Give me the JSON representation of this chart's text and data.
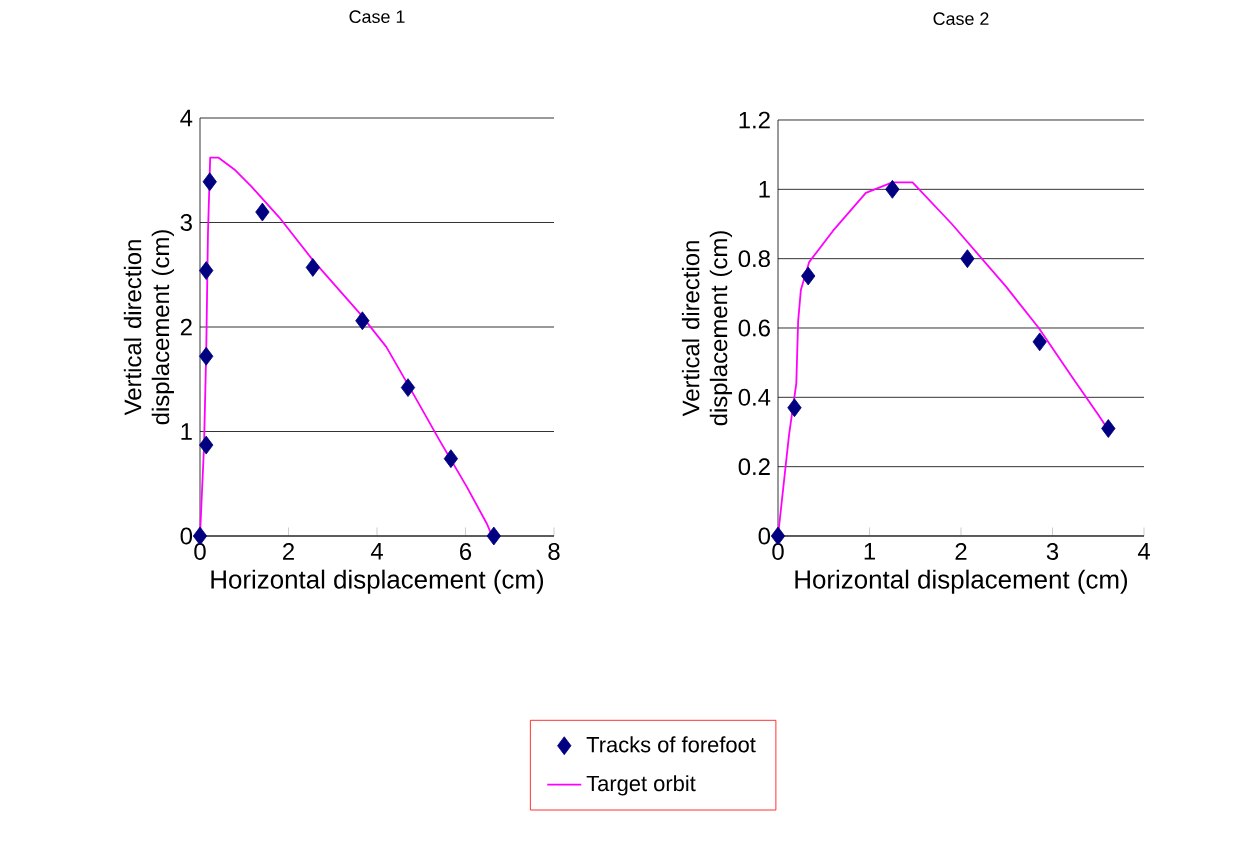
{
  "chart_data": [
    {
      "type": "scatter",
      "title": "Case 1",
      "xlabel": "Horizontal displacement (cm)",
      "ylabel": "Vertical direction displacement (cm)",
      "xlim": [
        0,
        8
      ],
      "xticks": [
        0,
        2,
        4,
        6,
        8
      ],
      "ylim": [
        0,
        4
      ],
      "yticks": [
        0,
        1,
        2,
        3,
        4
      ],
      "grid": "y",
      "legend": "bottom",
      "series": [
        {
          "name": "Tracks of forefoot",
          "marker": "diamond",
          "color": "#000080",
          "x": [
            0,
            0.14,
            0.14,
            0.14,
            0.22,
            1.41,
            2.55,
            3.67,
            4.7,
            5.67,
            6.64
          ],
          "values": [
            0,
            0.87,
            1.72,
            2.54,
            3.39,
            3.1,
            2.57,
            2.06,
            1.42,
            0.74,
            0
          ]
        },
        {
          "name": "Target orbit",
          "type": "line",
          "marker": "none",
          "color": "#ff00ff",
          "x": [
            0,
            0.09,
            0.14,
            0.18,
            0.23,
            0.42,
            0.8,
            1.17,
            1.79,
            2.55,
            3.61,
            4.21,
            4.82,
            5.42,
            6.03,
            6.48,
            6.6
          ],
          "values": [
            0,
            0.85,
            1.75,
            2.9,
            3.62,
            3.62,
            3.5,
            3.34,
            3.05,
            2.64,
            2.13,
            1.81,
            1.36,
            0.91,
            0.47,
            0.12,
            0
          ]
        }
      ]
    },
    {
      "type": "scatter",
      "title": "Case 2",
      "xlabel": "Horizontal displacement (cm)",
      "ylabel": "Vertical direction displacement (cm)",
      "xlim": [
        0,
        4
      ],
      "xticks": [
        0,
        1,
        2,
        3,
        4
      ],
      "ylim": [
        0,
        1.2
      ],
      "yticks": [
        0,
        0.2,
        0.4,
        0.6,
        0.8,
        1,
        1.2
      ],
      "grid": "y",
      "series": [
        {
          "marker": "diamond",
          "color": "#000080",
          "x": [
            0,
            0.18,
            0.33,
            1.25,
            2.07,
            2.86,
            3.61
          ],
          "values": [
            0,
            0.37,
            0.75,
            1.0,
            0.8,
            0.56,
            0.31
          ]
        },
        {
          "type": "line",
          "marker": "none",
          "color": "#ff00ff",
          "x": [
            0,
            0.12,
            0.2,
            0.22,
            0.25,
            0.34,
            0.6,
            0.96,
            1.25,
            1.47,
            1.9,
            2.49,
            2.85,
            3.21,
            3.5,
            3.6
          ],
          "values": [
            0,
            0.29,
            0.44,
            0.62,
            0.71,
            0.79,
            0.88,
            0.99,
            1.02,
            1.02,
            0.9,
            0.72,
            0.6,
            0.46,
            0.35,
            0.31
          ]
        }
      ]
    }
  ]
}
